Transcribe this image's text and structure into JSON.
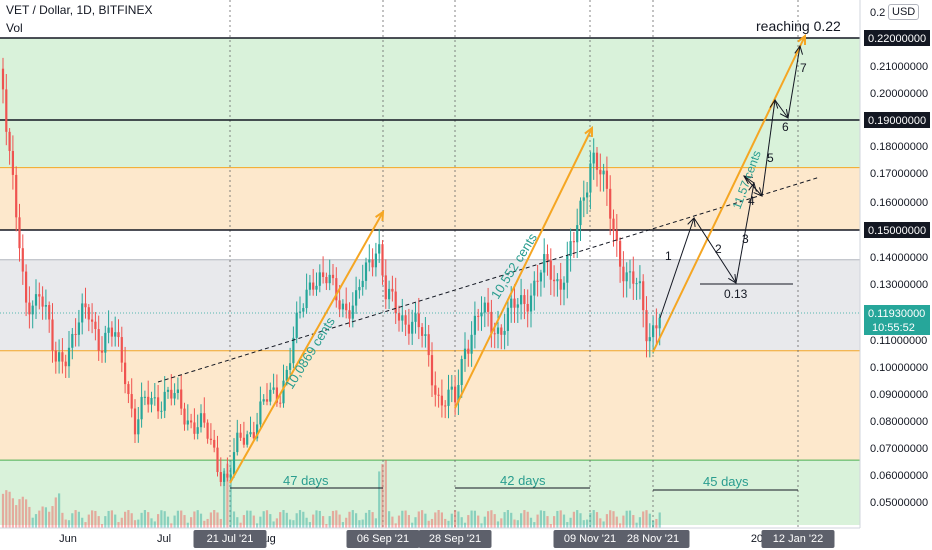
{
  "header": {
    "symbol_line": "VET / Dollar, 1D, BITFINEX",
    "volume_label": "Vol",
    "currency": "USD"
  },
  "colors": {
    "green_zone": "#d9f2da",
    "orange_zone": "#fde8cc",
    "gray_zone": "#e8e9ec",
    "orange_line": "#f5a623",
    "up_candle": "#26a69a",
    "down_candle": "#ef5350",
    "annotation_teal": "#2a9d8f",
    "current_price_bg": "#26a69a"
  },
  "chart_data": {
    "type": "candlestick",
    "title": "VET / Dollar, 1D, BITFINEX",
    "ylim": [
      0.045,
      0.229
    ],
    "x_axis_labels": [
      "Jun",
      "Jul",
      "Aug",
      "202"
    ],
    "highlighted_dates": [
      "21 Jul '21",
      "06 Sep '21",
      "28 Sep '21",
      "09 Nov '21",
      "28 Nov '21",
      "12 Jan '22"
    ],
    "y_tick_labels": [
      "0.2",
      "0.21000000",
      "0.20000000",
      "0.18000000",
      "0.17000000",
      "0.16000000",
      "0.14000000",
      "0.13000000",
      "0.11000000",
      "0.10000000",
      "0.09000000",
      "0.08000000",
      "0.07000000",
      "0.06000000",
      "0.05000000"
    ],
    "y_tick_values": [
      0.2285,
      0.21,
      0.2,
      0.18,
      0.17,
      0.16,
      0.14,
      0.13,
      0.11,
      0.1,
      0.09,
      0.08,
      0.07,
      0.06,
      0.05
    ],
    "highlighted_levels": [
      {
        "label": "0.22000000",
        "value": 0.22
      },
      {
        "label": "0.19000000",
        "value": 0.19
      },
      {
        "label": "0.15000000",
        "value": 0.15
      }
    ],
    "current_price": {
      "label": "0.11930000",
      "value": 0.1193,
      "countdown": "10:55:52"
    },
    "zones": [
      {
        "kind": "green",
        "from": 0.19,
        "to": 0.22
      },
      {
        "kind": "green",
        "from": 0.172,
        "to": 0.19
      },
      {
        "kind": "orange",
        "from": 0.15,
        "to": 0.172
      },
      {
        "kind": "gray",
        "from": 0.106,
        "to": 0.139
      },
      {
        "kind": "orange",
        "from": 0.0655,
        "to": 0.106
      },
      {
        "kind": "green",
        "from": 0.045,
        "to": 0.0655
      }
    ],
    "annotations": [
      {
        "text": "reaching 0.22"
      },
      {
        "text": "10,0869 cents"
      },
      {
        "text": "10,552 cents"
      },
      {
        "text": "11,57 cents"
      },
      {
        "text": "47 days"
      },
      {
        "text": "42 days"
      },
      {
        "text": "45 days"
      },
      {
        "text": "0.13"
      },
      {
        "text": "1"
      },
      {
        "text": "2"
      },
      {
        "text": "3"
      },
      {
        "text": "4"
      },
      {
        "text": "5"
      },
      {
        "text": "6"
      },
      {
        "text": "7"
      }
    ]
  }
}
